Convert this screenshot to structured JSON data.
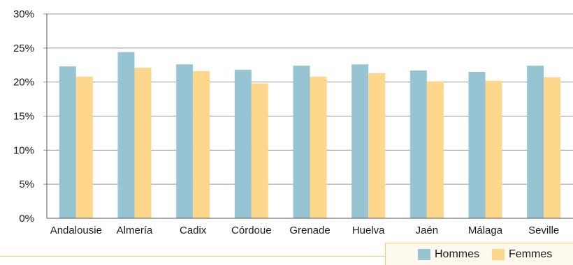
{
  "chart_data": {
    "type": "bar",
    "categories": [
      "Andalousie",
      "Almería",
      "Cadix",
      "Córdoue",
      "Grenade",
      "Huelva",
      "Jaén",
      "Málaga",
      "Seville"
    ],
    "series": [
      {
        "name": "Hommes",
        "values": [
          22.3,
          24.4,
          22.6,
          21.8,
          22.4,
          22.6,
          21.7,
          21.5,
          22.4
        ],
        "color": "#97c4d2"
      },
      {
        "name": "Femmes",
        "values": [
          20.8,
          22.1,
          21.6,
          19.8,
          20.8,
          21.3,
          20.1,
          20.2,
          20.7
        ],
        "color": "#fcd78c"
      }
    ],
    "ylim": [
      0,
      30
    ],
    "yticks": [
      0,
      5,
      10,
      15,
      20,
      25,
      30
    ],
    "ytick_labels": [
      "0%",
      "5%",
      "10%",
      "15%",
      "20%",
      "25%",
      "30%"
    ],
    "grid": true,
    "legend_position": "bottom-right"
  }
}
